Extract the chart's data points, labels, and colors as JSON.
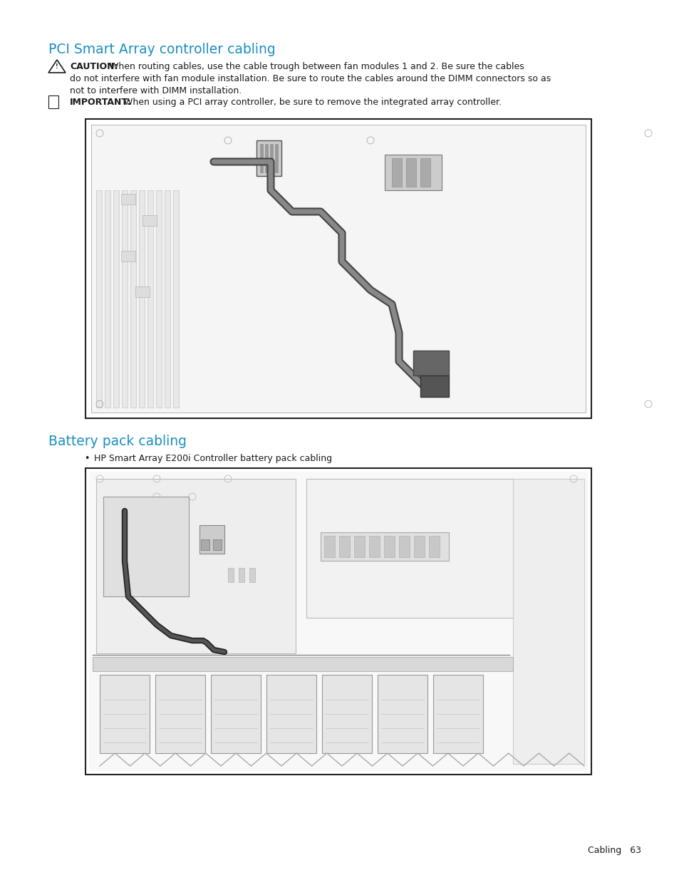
{
  "title1": "PCI Smart Array controller cabling",
  "title2": "Battery pack cabling",
  "caution_bold": "CAUTION:",
  "caution_line1": " When routing cables, use the cable trough between fan modules 1 and 2. Be sure the cables",
  "caution_line2": "do not interfere with fan module installation. Be sure to route the cables around the DIMM connectors so as",
  "caution_line3": "not to interfere with DIMM installation.",
  "important_bold": "IMPORTANT:",
  "important_rest": "  When using a PCI array controller, be sure to remove the integrated array controller.",
  "bullet_char": "•",
  "bullet_text": "HP Smart Array E200i Controller battery pack cabling",
  "footer_text": "Cabling   63",
  "heading_color": "#1a8fc1",
  "text_color": "#1a1a1a",
  "bg_color": "#ffffff",
  "title_fontsize": 13.5,
  "body_fontsize": 9.0,
  "footer_fontsize": 9.0
}
